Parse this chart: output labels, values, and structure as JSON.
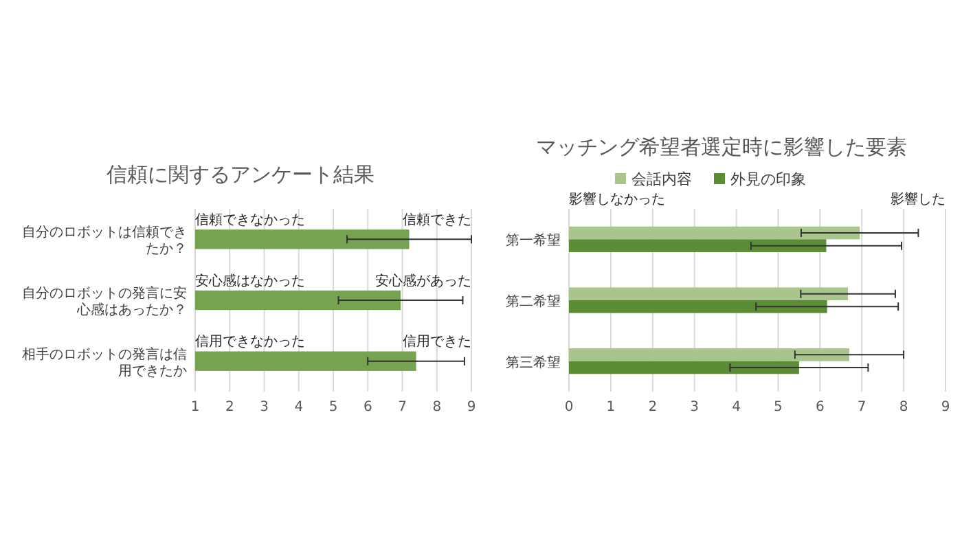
{
  "chart_data": [
    {
      "type": "bar",
      "orientation": "horizontal",
      "title": "信頼に関するアンケート結果",
      "categories": [
        "自分のロボットは信頼できたか？",
        "自分のロボットの発言に安心感はあったか？",
        "相手のロボットの発言は信用できたか"
      ],
      "values": [
        7.2,
        6.95,
        7.4
      ],
      "errors": [
        1.8,
        1.8,
        1.4
      ],
      "color": "#76a34f",
      "xlim": [
        1,
        9
      ],
      "xticks": [
        1,
        2,
        3,
        4,
        5,
        6,
        7,
        8,
        9
      ],
      "grid": "x",
      "annotations": [
        "信頼できなかった",
        "信頼できた",
        "安心感はなかった",
        "安心感があった",
        "信用できなかった",
        "信用できた"
      ]
    },
    {
      "type": "bar",
      "orientation": "horizontal",
      "title": "マッチング希望者選定時に影響した要素",
      "categories": [
        "第一希望",
        "第二希望",
        "第三希望"
      ],
      "series": [
        {
          "name": "会話内容",
          "color": "#a9c48c",
          "values": [
            6.95,
            6.67,
            6.7
          ],
          "errors": [
            1.4,
            1.13,
            1.3
          ]
        },
        {
          "name": "外見の印象",
          "color": "#5b8c36",
          "values": [
            6.15,
            6.17,
            5.5
          ],
          "errors": [
            1.8,
            1.7,
            1.65
          ]
        }
      ],
      "xlim": [
        0,
        9
      ],
      "xticks": [
        0,
        1,
        2,
        3,
        4,
        5,
        6,
        7,
        8,
        9
      ],
      "grid": "x",
      "legend": "top",
      "annotations": [
        "影響しなかった",
        "影響した"
      ]
    }
  ]
}
